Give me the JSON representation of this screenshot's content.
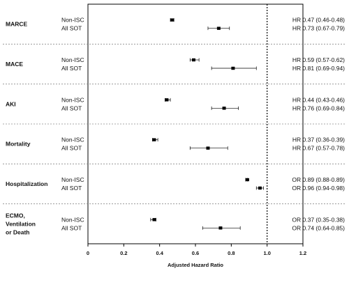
{
  "chart_data": {
    "type": "forest",
    "xlabel": "Adjusted Hazard Ratio",
    "xlim": [
      0,
      1.2
    ],
    "xticks": [
      0,
      0.2,
      0.4,
      0.6,
      0.8,
      1.0,
      1.2
    ],
    "xtick_labels": [
      "0",
      "0.2",
      "0.4",
      "0.6",
      "0.8",
      "1.0",
      "1.2"
    ],
    "reference_line": 1.0,
    "outcomes": [
      {
        "label": [
          "MARCE"
        ],
        "rows": [
          {
            "group": "Non-ISC",
            "estimate": 0.47,
            "lower": 0.46,
            "upper": 0.48,
            "text": "HR 0.47 (0.46-0.48)"
          },
          {
            "group": "All SOT",
            "estimate": 0.73,
            "lower": 0.67,
            "upper": 0.79,
            "text": "HR 0.73 (0.67-0.79)"
          }
        ]
      },
      {
        "label": [
          "MACE"
        ],
        "rows": [
          {
            "group": "Non-ISC",
            "estimate": 0.59,
            "lower": 0.57,
            "upper": 0.62,
            "text": "HR 0.59 (0.57-0.62)"
          },
          {
            "group": "All SOT",
            "estimate": 0.81,
            "lower": 0.69,
            "upper": 0.94,
            "text": "HR 0.81 (0.69-0.94)"
          }
        ]
      },
      {
        "label": [
          "AKI"
        ],
        "rows": [
          {
            "group": "Non-ISC",
            "estimate": 0.44,
            "lower": 0.43,
            "upper": 0.46,
            "text": "HR 0.44 (0.43-0.46)"
          },
          {
            "group": "All SOT",
            "estimate": 0.76,
            "lower": 0.69,
            "upper": 0.84,
            "text": "HR 0.76 (0.69-0.84)"
          }
        ]
      },
      {
        "label": [
          "Mortality"
        ],
        "rows": [
          {
            "group": "Non-ISC",
            "estimate": 0.37,
            "lower": 0.36,
            "upper": 0.39,
            "text": "HR 0.37 (0.36-0.39)"
          },
          {
            "group": "All SOT",
            "estimate": 0.67,
            "lower": 0.57,
            "upper": 0.78,
            "text": "HR 0.67 (0.57-0.78)"
          }
        ]
      },
      {
        "label": [
          "Hospitalization"
        ],
        "rows": [
          {
            "group": "Non-ISC",
            "estimate": 0.89,
            "lower": 0.88,
            "upper": 0.89,
            "text": "OR 0.89 (0.88-0.89)"
          },
          {
            "group": "All SOT",
            "estimate": 0.96,
            "lower": 0.94,
            "upper": 0.98,
            "text": "OR 0.96 (0.94-0.98)"
          }
        ]
      },
      {
        "label": [
          "ECMO,",
          "Ventilation",
          "or Death"
        ],
        "rows": [
          {
            "group": "Non-ISC",
            "estimate": 0.37,
            "lower": 0.35,
            "upper": 0.38,
            "text": "OR 0.37 (0.35-0.38)"
          },
          {
            "group": "All SOT",
            "estimate": 0.74,
            "lower": 0.64,
            "upper": 0.85,
            "text": "OR 0.74 (0.64-0.85)"
          }
        ]
      }
    ]
  }
}
